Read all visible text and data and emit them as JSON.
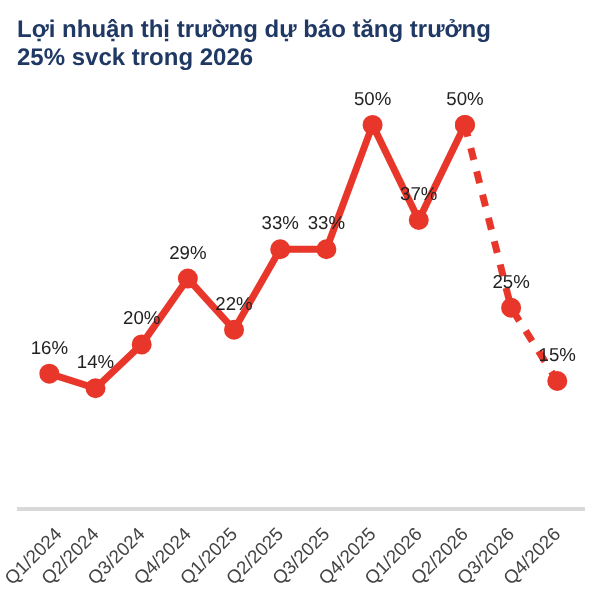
{
  "chart_data": {
    "type": "line",
    "title": "Lợi nhuận thị trường dự báo tăng trưởng 25% svck trong 2026",
    "categories": [
      "Q1/2024",
      "Q2/2024",
      "Q3/2024",
      "Q4/2024",
      "Q1/2025",
      "Q2/2025",
      "Q3/2025",
      "Q4/2025",
      "Q1/2026",
      "Q2/2026",
      "Q3/2026",
      "Q4/2026"
    ],
    "series": [
      {
        "color": "#e8372a",
        "line_style": "solid",
        "values": [
          16,
          14,
          20,
          29,
          22,
          33,
          33,
          50,
          37,
          50,
          null,
          null
        ],
        "value_labels": [
          "16%",
          "14%",
          "20%",
          "29%",
          "22%",
          "33%",
          "33%",
          "50%",
          "37%",
          "50%",
          null,
          null
        ]
      },
      {
        "color": "#e8372a",
        "line_style": "dashed",
        "values": [
          null,
          null,
          null,
          null,
          null,
          null,
          null,
          null,
          null,
          50,
          25,
          15
        ],
        "value_labels": [
          null,
          null,
          null,
          null,
          null,
          null,
          null,
          null,
          null,
          null,
          "25%",
          "15%"
        ]
      }
    ],
    "marker": "circle",
    "grid": false
  }
}
